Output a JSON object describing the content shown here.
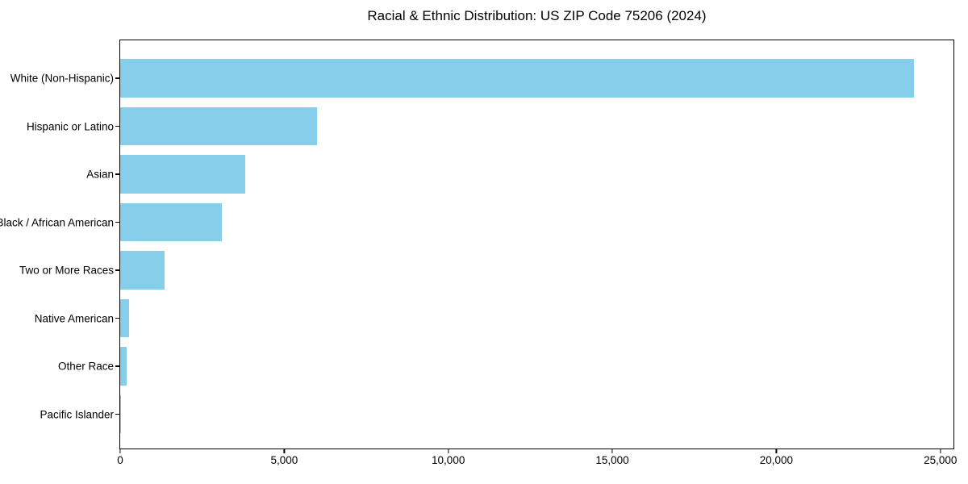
{
  "title": "Racial & Ethnic Distribution: US ZIP Code 75206 (2024)",
  "chart_data": {
    "type": "bar",
    "orientation": "horizontal",
    "title": "Racial & Ethnic Distribution: US ZIP Code 75206 (2024)",
    "categories": [
      "White (Non-Hispanic)",
      "Hispanic or Latino",
      "Asian",
      "Black / African American",
      "Two or More Races",
      "Native American",
      "Other Race",
      "Pacific Islander"
    ],
    "values": [
      24200,
      6000,
      3800,
      3100,
      1350,
      280,
      190,
      10
    ],
    "xlabel": "",
    "ylabel": "",
    "xlim": [
      0,
      25400
    ],
    "x_ticks": [
      0,
      5000,
      10000,
      15000,
      20000,
      25000
    ],
    "x_tick_labels": [
      "0",
      "5,000",
      "10,000",
      "15,000",
      "20,000",
      "25,000"
    ],
    "bar_color": "#87CEEB",
    "grid": false,
    "legend_position": "none"
  }
}
